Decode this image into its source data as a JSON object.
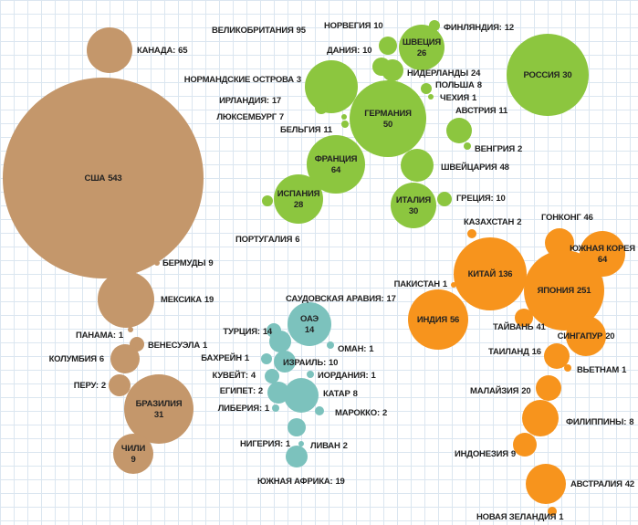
{
  "chart_data": {
    "type": "bubble",
    "series": [
      {
        "color": "#c4976b",
        "labels": [
          "КАНАДА:",
          "США",
          "БЕРМУДЫ",
          "МЕКСИКА",
          "ПАНАМА:",
          "ВЕНЕСУЭЛА",
          "КОЛУМБИЯ",
          "ПЕРУ:",
          "БРАЗИЛИЯ",
          "ЧИЛИ"
        ],
        "values": [
          65,
          543,
          9,
          19,
          1,
          1,
          6,
          2,
          31,
          9
        ]
      },
      {
        "color": "#8cc63f",
        "labels": [
          "ВЕЛИКОБРИТАНИЯ",
          "НОРВЕГИЯ",
          "ДАНИЯ:",
          "ШВЕЦИЯ",
          "ФИНЛЯНДИЯ:",
          "НОРМАНДСКИЕ ОСТРОВА",
          "НИДЕРЛАНДЫ",
          "ИРЛАНДИЯ:",
          "ГЕРМАНИЯ",
          "ПОЛЬША",
          "ЧЕХИЯ",
          "ЛЮКСЕМБУРГ",
          "АВСТРИЯ",
          "БЕЛЬГИЯ",
          "ВЕНГРИЯ",
          "ФРАНЦИЯ",
          "ШВЕЙЦАРИЯ",
          "РОССИЯ",
          "ИСПАНИЯ",
          "ИТАЛИЯ",
          "ПОРТУГАЛИЯ",
          "ГРЕЦИЯ:"
        ],
        "values": [
          95,
          10,
          10,
          26,
          12,
          3,
          24,
          17,
          50,
          8,
          1,
          7,
          11,
          11,
          2,
          64,
          48,
          30,
          28,
          30,
          6,
          10
        ]
      },
      {
        "color": "#7cc2bd",
        "labels": [
          "ОАЭ",
          "САУДОВСКАЯ АРАВИЯ:",
          "ТУРЦИЯ:",
          "ОМАН:",
          "БАХРЕЙН",
          "ИЗРАИЛЬ:",
          "КУВЕЙТ:",
          "ИОРДАНИЯ:",
          "ЕГИПЕТ:",
          "КАТАР",
          "ЛИБЕРИЯ:",
          "МАРОККО:",
          "НИГЕРИЯ:",
          "ЛИВАН",
          "ЮЖНАЯ АФРИКА:"
        ],
        "values": [
          14,
          17,
          14,
          1,
          1,
          10,
          4,
          1,
          2,
          8,
          1,
          2,
          1,
          2,
          19
        ]
      },
      {
        "color": "#f7941d",
        "labels": [
          "КАЗАХСТАН",
          "ГОНКОНГ",
          "ЮЖНАЯ КОРЕЯ",
          "КИТАЙ",
          "ПАКИСТАН",
          "ЯПОНИЯ",
          "ИНДИЯ",
          "ТАЙВАНЬ",
          "СИНГАПУР",
          "ТАИЛАНД",
          "ВЬЕТНАМ",
          "МАЛАЙЗИЯ",
          "ФИЛИППИНЫ:",
          "ИНДОНЕЗИЯ",
          "АВСТРАЛИЯ",
          "НОВАЯ ЗЕЛАНДИЯ"
        ],
        "values": [
          2,
          46,
          64,
          136,
          1,
          251,
          56,
          41,
          20,
          16,
          1,
          20,
          8,
          9,
          42,
          1
        ]
      }
    ]
  }
}
